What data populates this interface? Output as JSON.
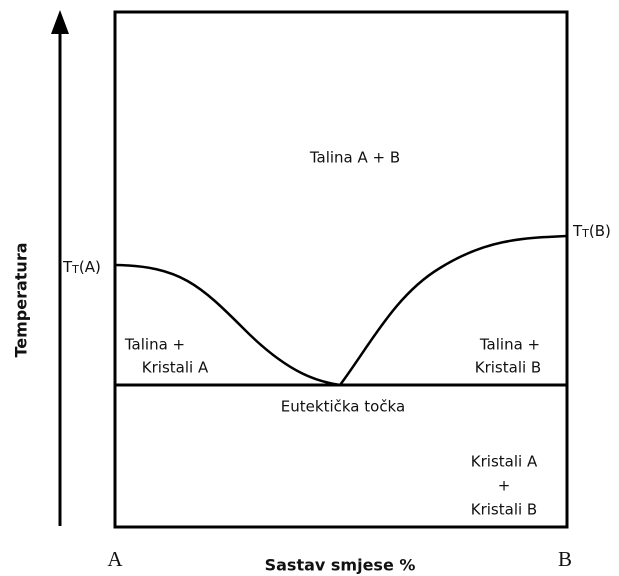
{
  "axis": {
    "y_label": "Temperatura",
    "x_label": "Sastav smjese %",
    "left_end": "A",
    "right_end": "B"
  },
  "regions": {
    "top": "Talina A + B",
    "left": [
      "Talina +",
      "Kristali A"
    ],
    "right": [
      "Talina +",
      "Kristali B"
    ],
    "bottom": [
      "Kristali A",
      "+",
      "Kristali B"
    ]
  },
  "eutectic_point": "Eutektička točka",
  "melting_point_a": {
    "symbol": "T",
    "subscript": "T",
    "suffix": "(A)"
  },
  "melting_point_b": {
    "symbol": "T",
    "subscript": "T",
    "suffix": "(B)"
  }
}
